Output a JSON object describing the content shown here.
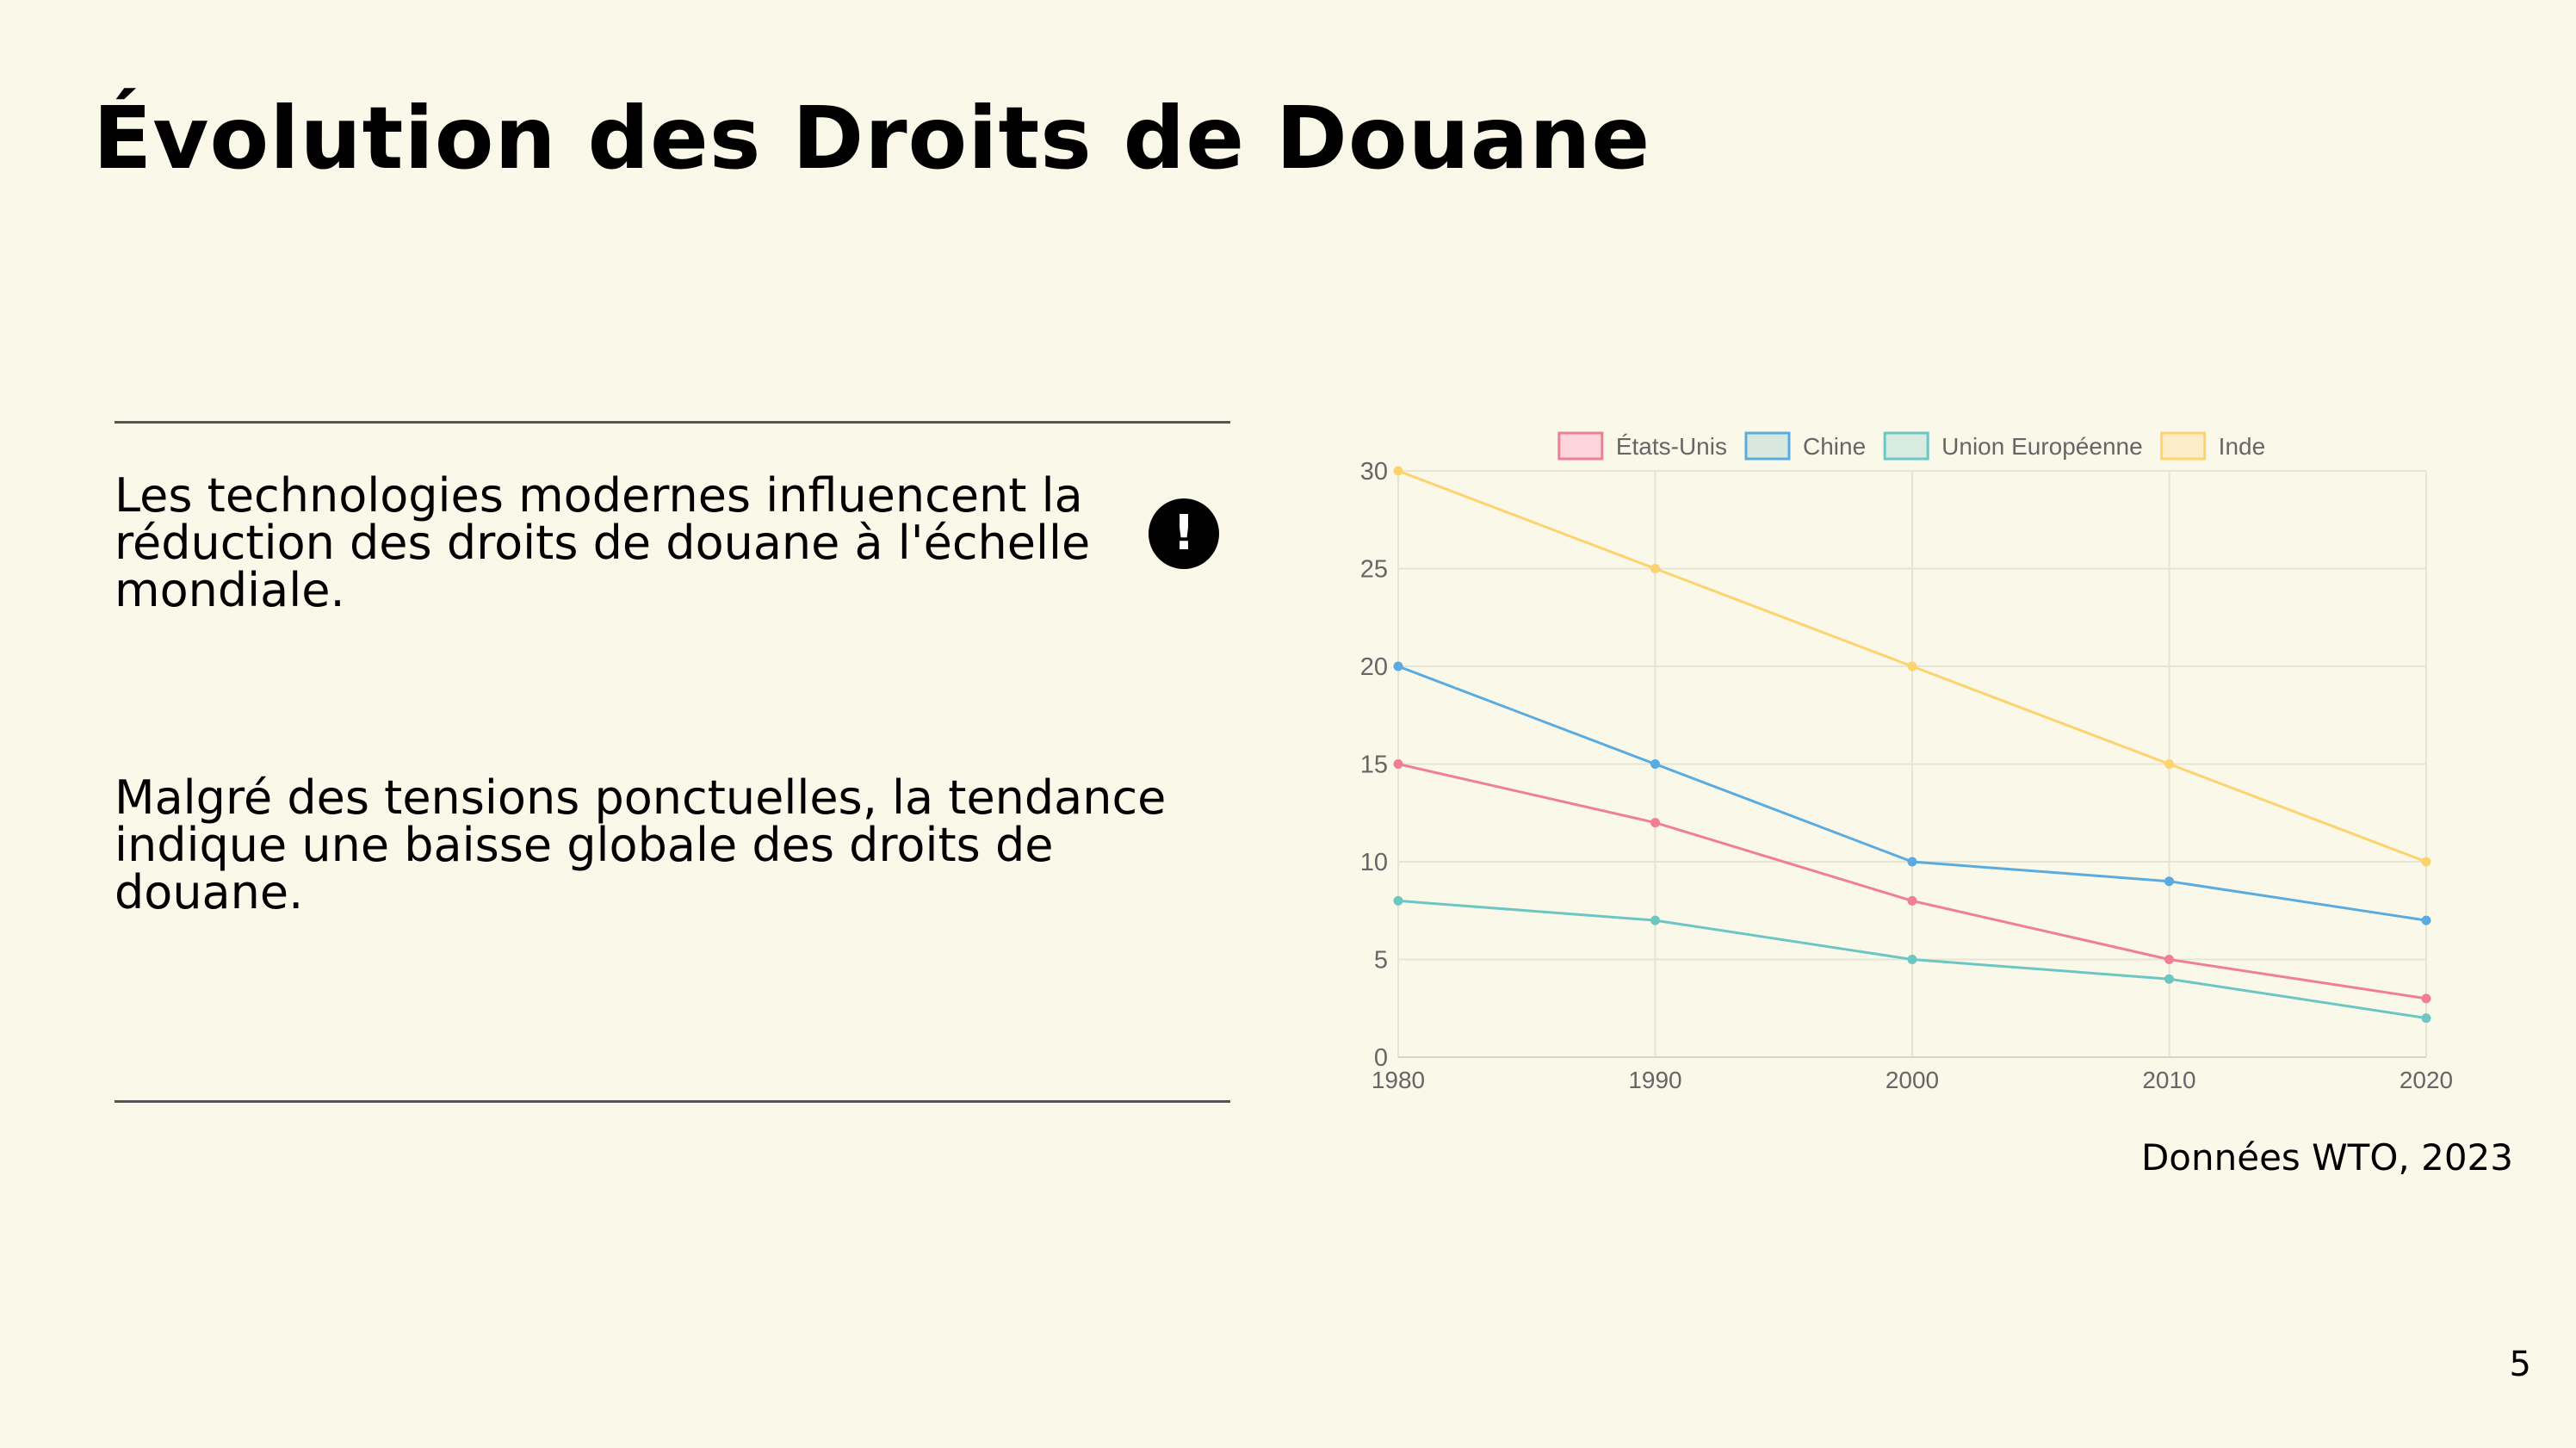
{
  "slide": {
    "title": "Évolution des Droits de Douane",
    "paragraphs": [
      "Les technologies modernes influencent la réduction des droits de douane à l'échelle mondiale.",
      "Malgré des tensions ponctuelles, la tendance indique une baisse globale des droits de douane."
    ],
    "alert_icon": "!",
    "source": "Données WTO, 2023",
    "page_number": "5"
  },
  "chart_data": {
    "type": "line",
    "title": "",
    "xlabel": "",
    "ylabel": "",
    "x": [
      "1980",
      "1990",
      "2000",
      "2010",
      "2020"
    ],
    "ylim": [
      0,
      30
    ],
    "yticks": [
      0,
      5,
      10,
      15,
      20,
      25,
      30
    ],
    "grid": true,
    "legend_position": "top",
    "series": [
      {
        "name": "États-Unis",
        "values": [
          15,
          12,
          8,
          5,
          3
        ],
        "color": "#f07f95",
        "fill": "#fdd6db"
      },
      {
        "name": "Chine",
        "values": [
          20,
          15,
          10,
          9,
          7
        ],
        "color": "#5aace0",
        "fill": "#d8e8e0"
      },
      {
        "name": "Union Européenne",
        "values": [
          8,
          7,
          5,
          4,
          2
        ],
        "color": "#6cc7c4",
        "fill": "#d8ebe0"
      },
      {
        "name": "Inde",
        "values": [
          30,
          25,
          20,
          15,
          10
        ],
        "color": "#fdd36e",
        "fill": "#fcecc8"
      }
    ]
  }
}
